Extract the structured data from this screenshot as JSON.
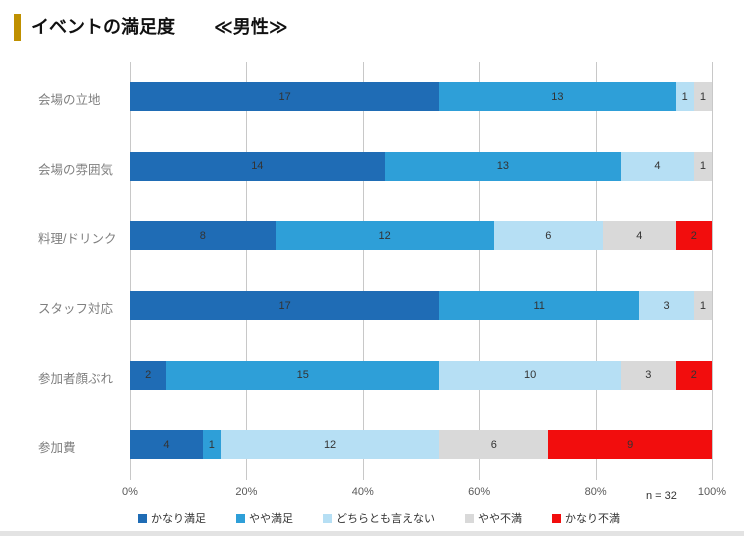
{
  "header": {
    "title": "イベントの満足度",
    "subtitle": "≪男性≫",
    "accent_color": "#bf9000"
  },
  "chart_data": {
    "type": "bar",
    "orientation": "horizontal",
    "stacked": true,
    "title": "イベントの満足度 ≪男性≫",
    "categories": [
      "会場の立地",
      "会場の雰囲気",
      "料理/ドリンク",
      "スタッフ対応",
      "参加者顔ぶれ",
      "参加費"
    ],
    "series": [
      {
        "name": "かなり満足",
        "color": "#1f6cb5",
        "values": [
          17,
          14,
          8,
          17,
          2,
          4
        ]
      },
      {
        "name": "やや満足",
        "color": "#2e9fd8",
        "values": [
          13,
          13,
          12,
          11,
          15,
          1
        ]
      },
      {
        "name": "どちらとも言えない",
        "color": "#b6dff4",
        "values": [
          1,
          4,
          6,
          3,
          10,
          12
        ]
      },
      {
        "name": "やや不満",
        "color": "#d9d9d9",
        "values": [
          1,
          1,
          4,
          1,
          3,
          6
        ]
      },
      {
        "name": "かなり不満",
        "color": "#f20d0d",
        "values": [
          0,
          0,
          2,
          0,
          2,
          9
        ]
      }
    ],
    "total": 32,
    "n_label": "n = 32",
    "x_ticks": [
      "0%",
      "20%",
      "40%",
      "60%",
      "80%",
      "100%"
    ],
    "xlim": [
      0,
      100
    ],
    "gridlines": "vertical",
    "legend_position": "bottom"
  }
}
